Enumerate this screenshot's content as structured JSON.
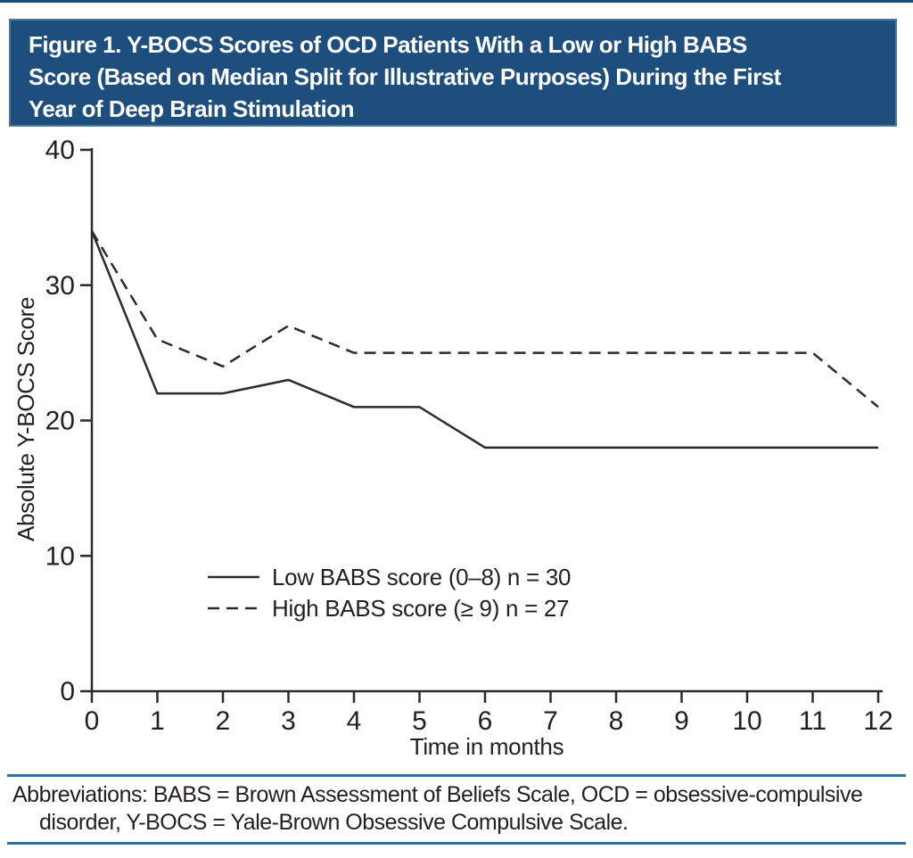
{
  "header": {
    "title_lines": [
      "Figure 1. Y-BOCS Scores of OCD Patients With a Low or High BABS",
      "Score (Based on Median Split for Illustrative Purposes) During the First",
      "Year of Deep Brain Stimulation"
    ],
    "bg_color": "#1d4e7d",
    "text_color": "#ffffff"
  },
  "chart_data": {
    "type": "line",
    "title": "Y-BOCS Scores of OCD Patients With a Low or High BABS Score During the First Year of Deep Brain Stimulation",
    "x": [
      0,
      1,
      2,
      3,
      4,
      5,
      6,
      7,
      8,
      9,
      10,
      11,
      12
    ],
    "series": [
      {
        "name": "Low BABS score (0–8) n = 30",
        "style": "solid",
        "values": [
          34,
          22,
          22,
          23,
          21,
          21,
          18,
          18,
          18,
          18,
          18,
          18,
          18
        ]
      },
      {
        "name": "High BABS score (≥ 9) n = 27",
        "style": "dashed",
        "values": [
          34,
          26,
          24,
          27,
          25,
          25,
          25,
          25,
          25,
          25,
          25,
          25,
          21
        ]
      }
    ],
    "xlabel": "Time in months",
    "ylabel": "Absolute Y-BOCS Score",
    "xlim": [
      0,
      12
    ],
    "ylim": [
      0,
      40
    ],
    "xticks": [
      0,
      1,
      2,
      3,
      4,
      5,
      6,
      7,
      8,
      9,
      10,
      11,
      12
    ],
    "yticks": [
      0,
      10,
      20,
      30,
      40
    ],
    "grid": false,
    "legend_position": "inside-lower-left",
    "line_color": "#2b2b2b"
  },
  "footer": {
    "lines": [
      "Abbreviations: BABS = Brown Assessment of Beliefs Scale, OCD = obsessive-compulsive",
      "disorder, Y-BOCS = Yale-Brown Obsessive Compulsive Scale."
    ],
    "rule_color": "#2a72a6"
  }
}
